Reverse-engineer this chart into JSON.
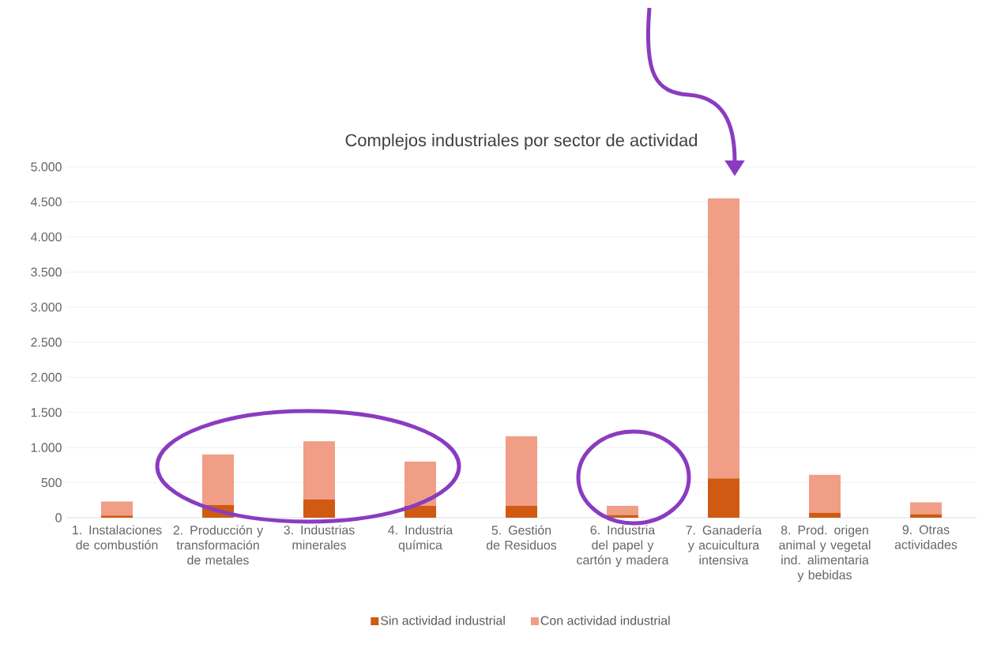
{
  "chart_data": {
    "type": "bar",
    "title": "Complejos industriales por sector de actividad",
    "categories": [
      "1. Instalaciones de combustión",
      "2. Producción y transformación de metales",
      "3. Industrias minerales",
      "4. Industria química",
      "5. Gestión de Residuos",
      "6. Industria del papel y cartón y madera",
      "7. Ganadería y acuicultura intensiva",
      "8. Prod. origen animal y vegetal ind. alimentaria y bebidas",
      "9. Otras actividades"
    ],
    "series": [
      {
        "name": "Sin actividad industrial",
        "color": "#d05a12",
        "values": [
          30,
          180,
          260,
          170,
          170,
          40,
          560,
          70,
          50
        ]
      },
      {
        "name": "Con actividad industrial",
        "color": "#f09e86",
        "values": [
          200,
          720,
          830,
          630,
          990,
          130,
          3990,
          540,
          170
        ]
      }
    ],
    "stacked": true,
    "ylim": [
      0,
      5000
    ],
    "yticks": [
      {
        "value": 0,
        "label": "0"
      },
      {
        "value": 500,
        "label": "500"
      },
      {
        "value": 1000,
        "label": "1.000"
      },
      {
        "value": 1500,
        "label": "1.500"
      },
      {
        "value": 2000,
        "label": "2.000"
      },
      {
        "value": 2500,
        "label": "2.500"
      },
      {
        "value": 3000,
        "label": "3.000"
      },
      {
        "value": 3500,
        "label": "3.500"
      },
      {
        "value": 4000,
        "label": "4.000"
      },
      {
        "value": 4500,
        "label": "4.500"
      },
      {
        "value": 5000,
        "label": "5.000"
      }
    ],
    "grid": "y",
    "legend": "bottom"
  }
}
